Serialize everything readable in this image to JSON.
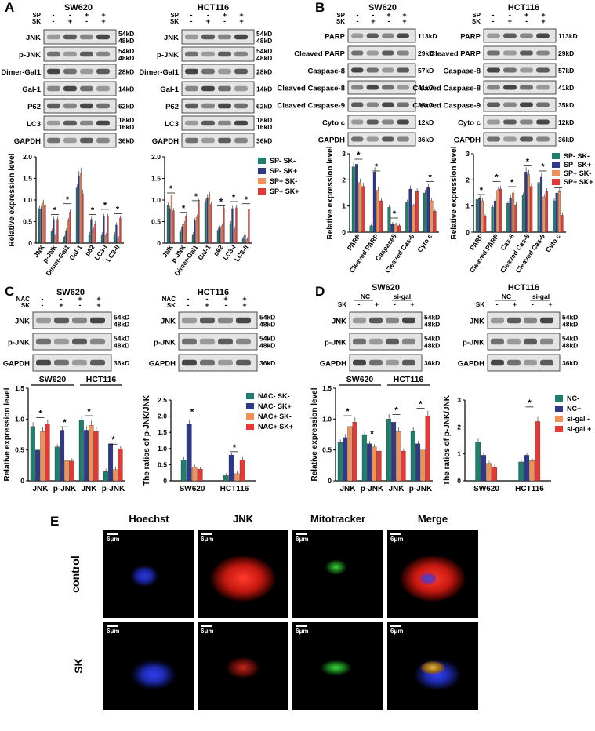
{
  "panels": {
    "A": "A",
    "B": "B",
    "C": "C",
    "D": "D",
    "E": "E"
  },
  "cells": {
    "sw620": "SW620",
    "hct116": "HCT116"
  },
  "treat": {
    "sp": "SP",
    "sk": "SK",
    "nac": "NAC",
    "minus": "-",
    "plus": "+",
    "nc": "NC",
    "sigal": "si-gal"
  },
  "blotA": {
    "labels": [
      "JNK",
      "p-JNK",
      "Dimer-Gal1",
      "Gal-1",
      "P62",
      "LC3",
      "GAPDH"
    ],
    "kd": [
      [
        "54kD",
        "48kD"
      ],
      [
        "54kD",
        "48kD"
      ],
      [
        "28kD"
      ],
      [
        "14kD"
      ],
      [
        "62kD"
      ],
      [
        "18kD",
        "16kD"
      ],
      [
        "36kD"
      ]
    ]
  },
  "blotB_left": {
    "labels": [
      "PARP",
      "Cleaved PARP",
      "Caspase-8",
      "Cleaved Caspase-8",
      "Cleaved Caspase-9",
      "Cyto c",
      "GAPDH"
    ],
    "kd": [
      "113kD",
      "29kD",
      "57kD",
      "41kD",
      "35kD",
      "12kD",
      "36kD"
    ]
  },
  "blotB_right": {
    "labels": [
      "PARP",
      "Cleaved PARP",
      "Caspase-8",
      "Cleaved Caspase-8",
      "Cleaved Caspase-9",
      "Cyto c",
      "GAPDH"
    ],
    "kd": [
      "113kD",
      "29kD",
      "57kD",
      "41kD",
      "35kD",
      "12kD",
      "36kD"
    ]
  },
  "blotCD": {
    "labels": [
      "JNK",
      "p-JNK",
      "GAPDH"
    ],
    "kd": [
      [
        "54kD",
        "48kD"
      ],
      [
        "54kD",
        "48kD"
      ],
      [
        "36kD"
      ]
    ]
  },
  "colors": {
    "s1": "#1f7f6e",
    "s2": "#2e3a87",
    "s3": "#f0915a",
    "s4": "#e53935"
  },
  "legendA": [
    "SP- SK-",
    "SP- SK+",
    "SP+ SK-",
    "SP+ SK+"
  ],
  "legendC": [
    "NAC- SK-",
    "NAC- SK+",
    "NAC+ SK-",
    "NAC+ SK+"
  ],
  "legendD": [
    "NC-",
    "NC+",
    "si-gal -",
    "si-gal +"
  ],
  "axis": {
    "rel": "Relative expression level",
    "ratio": "The ratios of p-JNK/JNK"
  },
  "star": "*",
  "E": {
    "cols": [
      "Hoechst",
      "JNK",
      "Mitotracker",
      "Merge"
    ],
    "rows": [
      "control",
      "SK"
    ],
    "scale": "6μm"
  },
  "chart_data": [
    {
      "id": "A-SW620",
      "type": "bar",
      "categories": [
        "JNK",
        "p-JNK",
        "Dimer-Gal1",
        "Gal-1",
        "p62",
        "LC3-I",
        "LC3-II"
      ],
      "ylim": [
        0,
        2.0
      ],
      "yticks": [
        0,
        0.5,
        1.0,
        1.5,
        2.0
      ],
      "ylabel": "Relative expression level",
      "series": [
        {
          "name": "SP- SK-",
          "values": [
            0.8,
            0.28,
            0.14,
            1.28,
            0.2,
            0.2,
            0.2
          ]
        },
        {
          "name": "SP- SK+",
          "values": [
            0.8,
            0.55,
            0.28,
            1.55,
            0.55,
            0.62,
            0.42
          ]
        },
        {
          "name": "SP+ SK-",
          "values": [
            0.93,
            0.2,
            0.52,
            1.62,
            0.3,
            0.18,
            0.1
          ]
        },
        {
          "name": "SP+ SK+",
          "values": [
            0.88,
            0.55,
            0.72,
            1.15,
            0.45,
            0.62,
            0.58
          ]
        }
      ]
    },
    {
      "id": "A-HCT116",
      "type": "bar",
      "categories": [
        "JNK",
        "p-JNK",
        "Dimer-Gal1",
        "Gal-1",
        "p62",
        "LC3-I",
        "LC3-II"
      ],
      "ylim": [
        0,
        2.0
      ],
      "yticks": [
        0,
        0.5,
        1.0,
        1.5,
        2.0
      ],
      "series": [
        {
          "name": "SP- SK-",
          "values": [
            0.88,
            0.25,
            0.2,
            0.95,
            0.3,
            0.45,
            0.1
          ]
        },
        {
          "name": "SP- SK+",
          "values": [
            0.8,
            0.38,
            0.52,
            1.05,
            0.35,
            0.8,
            0.2
          ]
        },
        {
          "name": "SP+ SK-",
          "values": [
            1.12,
            0.45,
            0.6,
            1.1,
            0.4,
            0.3,
            0.08
          ]
        },
        {
          "name": "SP+ SK+",
          "values": [
            0.75,
            0.62,
            0.95,
            0.9,
            0.82,
            0.82,
            0.78
          ]
        }
      ]
    },
    {
      "id": "B-SW620",
      "type": "bar",
      "categories": [
        "PARP",
        "Cleaved PARP",
        "Caspase8",
        "Cleaved Cas-9",
        "Cyto c"
      ],
      "ylim": [
        0,
        3
      ],
      "yticks": [
        0,
        1,
        2,
        3
      ],
      "ylabel": "Relative expression level",
      "series": [
        {
          "name": "SP- SK-",
          "values": [
            2.5,
            0.25,
            0.95,
            1.15,
            1.5
          ]
        },
        {
          "name": "SP- SK+",
          "values": [
            2.6,
            2.3,
            0.3,
            1.65,
            1.7
          ]
        },
        {
          "name": "SP+ SK-",
          "values": [
            1.9,
            1.6,
            0.28,
            1.0,
            1.2
          ]
        },
        {
          "name": "SP+ SK+",
          "values": [
            1.75,
            1.2,
            0.25,
            1.55,
            0.8
          ]
        }
      ]
    },
    {
      "id": "B-HCT116",
      "type": "bar",
      "categories": [
        "PARP",
        "Cleaved PARP",
        "Cas-8",
        "Cleaved Cas-8",
        "Cleaved Cas-9",
        "Cyto c"
      ],
      "ylim": [
        0,
        3
      ],
      "yticks": [
        0,
        1,
        2,
        3
      ],
      "ylabel": "Relative expression level",
      "series": [
        {
          "name": "SP- SK-",
          "values": [
            1.25,
            0.95,
            1.1,
            1.4,
            1.9,
            1.2
          ]
        },
        {
          "name": "SP- SK+",
          "values": [
            1.3,
            1.2,
            1.3,
            2.3,
            2.1,
            1.5
          ]
        },
        {
          "name": "SP+ SK-",
          "values": [
            1.2,
            1.6,
            1.5,
            2.2,
            1.35,
            1.55
          ]
        },
        {
          "name": "SP+ SK+",
          "values": [
            0.6,
            1.65,
            1.05,
            1.75,
            1.55,
            0.65
          ]
        }
      ]
    },
    {
      "id": "C-rel",
      "type": "bar",
      "group_labels": [
        "SW620",
        "HCT116"
      ],
      "categories": [
        "JNK",
        "p-JNK",
        "JNK",
        "p-JNK"
      ],
      "ylim": [
        0,
        1.5
      ],
      "yticks": [
        0,
        0.5,
        1.0,
        1.5
      ],
      "ylabel": "Relative expression level",
      "series": [
        {
          "name": "NAC- SK-",
          "values": [
            0.88,
            0.55,
            0.98,
            0.15
          ]
        },
        {
          "name": "NAC- SK+",
          "values": [
            0.5,
            0.82,
            0.82,
            0.6
          ]
        },
        {
          "name": "NAC+ SK-",
          "values": [
            0.8,
            0.33,
            0.9,
            0.18
          ]
        },
        {
          "name": "NAC+ SK+",
          "values": [
            0.92,
            0.32,
            0.8,
            0.52
          ]
        }
      ]
    },
    {
      "id": "C-ratio",
      "type": "bar",
      "categories": [
        "SW620",
        "HCT116"
      ],
      "ylim": [
        0,
        2.5
      ],
      "yticks": [
        0,
        0.5,
        1.0,
        1.5,
        2.0,
        2.5
      ],
      "ylabel": "The ratios of p-JNK/JNK",
      "series": [
        {
          "name": "NAC- SK-",
          "values": [
            0.65,
            0.16
          ]
        },
        {
          "name": "NAC- SK+",
          "values": [
            1.75,
            0.8
          ]
        },
        {
          "name": "NAC+ SK-",
          "values": [
            0.42,
            0.22
          ]
        },
        {
          "name": "NAC+ SK+",
          "values": [
            0.36,
            0.65
          ]
        }
      ]
    },
    {
      "id": "D-rel",
      "type": "bar",
      "group_labels": [
        "SW620",
        "HCT116"
      ],
      "categories": [
        "JNK",
        "p-JNK",
        "JNK",
        "p-JNK"
      ],
      "ylim": [
        0,
        1.5
      ],
      "yticks": [
        0,
        0.5,
        1.0,
        1.5
      ],
      "ylabel": "Relative expression level",
      "series": [
        {
          "name": "NC-",
          "values": [
            0.62,
            0.75,
            1.0,
            0.8
          ]
        },
        {
          "name": "NC+",
          "values": [
            0.7,
            0.6,
            0.95,
            0.6
          ]
        },
        {
          "name": "si-gal -",
          "values": [
            0.88,
            0.55,
            0.8,
            0.5
          ]
        },
        {
          "name": "si-gal +",
          "values": [
            0.95,
            0.48,
            0.48,
            1.05
          ]
        }
      ]
    },
    {
      "id": "D-ratio",
      "type": "bar",
      "categories": [
        "SW620",
        "HCT116"
      ],
      "ylim": [
        0,
        3
      ],
      "yticks": [
        0,
        1,
        2,
        3
      ],
      "ylabel": "The ratios of p-JNK/JNK",
      "series": [
        {
          "name": "NC-",
          "values": [
            1.45,
            0.7
          ]
        },
        {
          "name": "NC+",
          "values": [
            0.95,
            0.95
          ]
        },
        {
          "name": "si-gal -",
          "values": [
            0.65,
            0.75
          ]
        },
        {
          "name": "si-gal +",
          "values": [
            0.5,
            2.2
          ]
        }
      ]
    }
  ]
}
